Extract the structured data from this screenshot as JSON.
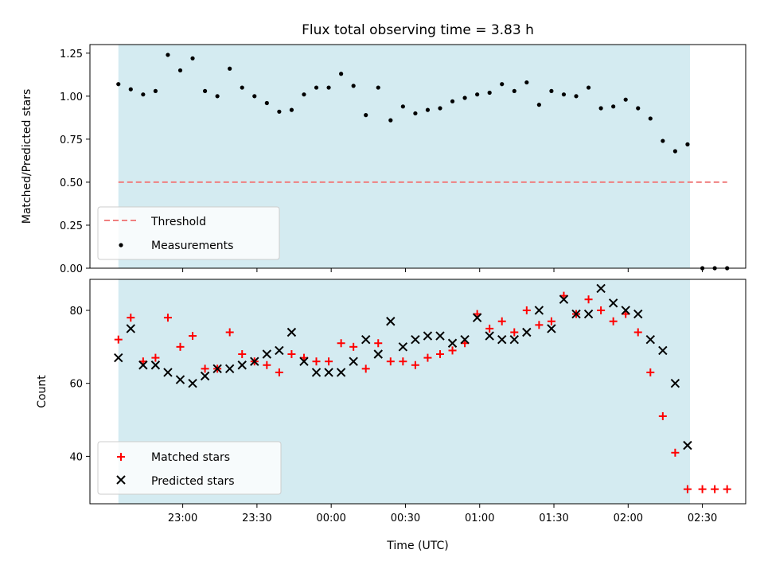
{
  "chart_data": {
    "title": "Flux total observing time = 3.83 h",
    "type": "scatter",
    "x_unit": "minutes after 22:00 UTC",
    "x_ticks": [
      "23:00",
      "23:30",
      "00:00",
      "00:30",
      "01:00",
      "01:30",
      "02:00",
      "02:30"
    ],
    "x_tick_minutes": [
      60,
      90,
      120,
      150,
      180,
      210,
      240,
      270
    ],
    "xlabel": "Time (UTC)",
    "xlim": [
      22.5,
      287.5
    ],
    "shaded_span": {
      "start_minute": 34,
      "end_minute": 265,
      "color": "#d4ebf1"
    },
    "panels": [
      {
        "ylabel": "Matched/Predicted stars",
        "ylim": [
          0,
          1.3
        ],
        "yticks": [
          0.0,
          0.25,
          0.5,
          0.75,
          1.0,
          1.25
        ],
        "ytick_labels": [
          "0.00",
          "0.25",
          "0.50",
          "0.75",
          "1.00",
          "1.25"
        ],
        "legend_position": "lower-left",
        "threshold": {
          "name": "Threshold",
          "value": 0.5,
          "x_range": [
            34,
            280
          ],
          "color": "#f08080"
        },
        "series": [
          {
            "name": "Measurements",
            "marker": "dot",
            "color": "#000000",
            "x": [
              34,
              39,
              44,
              49,
              54,
              59,
              64,
              69,
              74,
              79,
              84,
              89,
              94,
              99,
              104,
              109,
              114,
              119,
              124,
              129,
              134,
              139,
              144,
              149,
              154,
              159,
              164,
              169,
              174,
              179,
              184,
              189,
              194,
              199,
              204,
              209,
              214,
              219,
              224,
              229,
              234,
              239,
              244,
              249,
              254,
              259,
              264,
              270,
              275,
              280
            ],
            "y": [
              1.07,
              1.04,
              1.01,
              1.03,
              1.24,
              1.15,
              1.22,
              1.03,
              1.0,
              1.16,
              1.05,
              1.0,
              0.96,
              0.91,
              0.92,
              1.01,
              1.05,
              1.05,
              1.13,
              1.06,
              0.89,
              1.05,
              0.86,
              0.94,
              0.9,
              0.92,
              0.93,
              0.97,
              0.99,
              1.01,
              1.02,
              1.07,
              1.03,
              1.08,
              0.95,
              1.03,
              1.01,
              1.0,
              1.05,
              0.93,
              0.94,
              0.98,
              0.93,
              0.87,
              0.74,
              0.68,
              0.72,
              0.0,
              0.0,
              0.0
            ]
          }
        ]
      },
      {
        "ylabel": "Count",
        "ylim": [
          27,
          88.5
        ],
        "yticks": [
          40,
          60,
          80
        ],
        "ytick_labels": [
          "40",
          "60",
          "80"
        ],
        "legend_position": "lower-left",
        "series": [
          {
            "name": "Matched stars",
            "marker": "plus",
            "color": "#ff0000",
            "x": [
              34,
              39,
              44,
              49,
              54,
              59,
              64,
              69,
              74,
              79,
              84,
              89,
              94,
              99,
              104,
              109,
              114,
              119,
              124,
              129,
              134,
              139,
              144,
              149,
              154,
              159,
              164,
              169,
              174,
              179,
              184,
              189,
              194,
              199,
              204,
              209,
              214,
              219,
              224,
              229,
              234,
              239,
              244,
              249,
              254,
              259,
              264,
              270,
              275,
              280
            ],
            "y": [
              72,
              78,
              66,
              67,
              78,
              70,
              73,
              64,
              64,
              74,
              68,
              66,
              65,
              63,
              68,
              67,
              66,
              66,
              71,
              70,
              64,
              71,
              66,
              66,
              65,
              67,
              68,
              69,
              71,
              79,
              75,
              77,
              74,
              80,
              76,
              77,
              84,
              79,
              83,
              80,
              77,
              79,
              74,
              63,
              51,
              41,
              31,
              31,
              31,
              31
            ]
          },
          {
            "name": "Predicted stars",
            "marker": "x",
            "color": "#000000",
            "x": [
              34,
              39,
              44,
              49,
              54,
              59,
              64,
              69,
              74,
              79,
              84,
              89,
              94,
              99,
              104,
              109,
              114,
              119,
              124,
              129,
              134,
              139,
              144,
              149,
              154,
              159,
              164,
              169,
              174,
              179,
              184,
              189,
              194,
              199,
              204,
              209,
              214,
              219,
              224,
              229,
              234,
              239,
              244,
              249,
              254,
              259,
              264
            ],
            "y": [
              67,
              75,
              65,
              65,
              63,
              61,
              60,
              62,
              64,
              64,
              65,
              66,
              68,
              69,
              74,
              66,
              63,
              63,
              63,
              66,
              72,
              68,
              77,
              70,
              72,
              73,
              73,
              71,
              72,
              78,
              73,
              72,
              72,
              74,
              80,
              75,
              83,
              79,
              79,
              86,
              82,
              80,
              79,
              72,
              69,
              60,
              43
            ]
          }
        ]
      }
    ]
  }
}
